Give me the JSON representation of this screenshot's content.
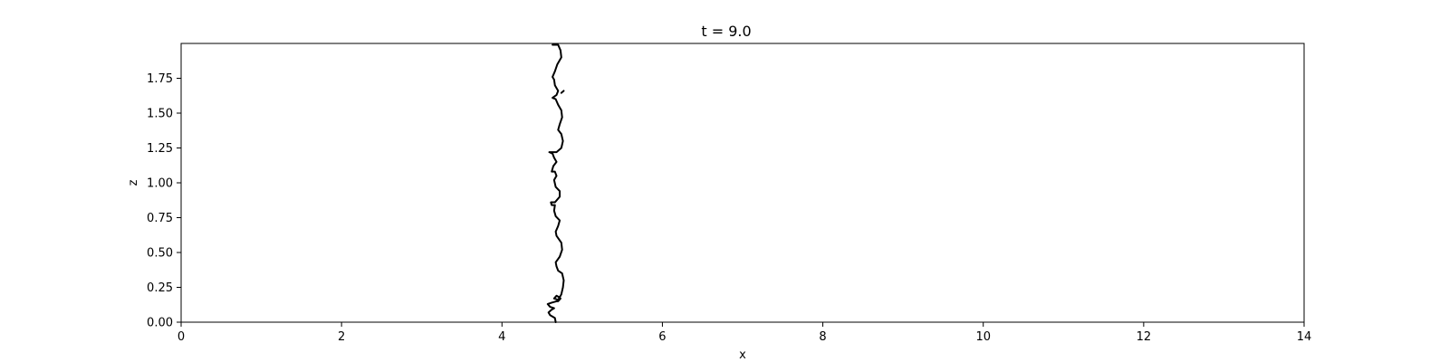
{
  "chart_data": {
    "type": "line",
    "title": "t = 9.0",
    "xlabel": "x",
    "ylabel": "z",
    "xlim": [
      0,
      14
    ],
    "ylim": [
      0,
      2.0
    ],
    "x_ticks": [
      0,
      2,
      4,
      6,
      8,
      10,
      12,
      14
    ],
    "x_tick_labels": [
      "0",
      "2",
      "4",
      "6",
      "8",
      "10",
      "12",
      "14"
    ],
    "y_ticks": [
      0.0,
      0.25,
      0.5,
      0.75,
      1.0,
      1.25,
      1.5,
      1.75
    ],
    "y_tick_labels": [
      "0.00",
      "0.25",
      "0.50",
      "0.75",
      "1.00",
      "1.25",
      "1.50",
      "1.75"
    ],
    "grid": false,
    "line_color": "#000000",
    "series": [
      {
        "points": [
          [
            4.67,
            0.0
          ],
          [
            4.66,
            0.03
          ],
          [
            4.6,
            0.05
          ],
          [
            4.58,
            0.07
          ],
          [
            4.62,
            0.09
          ],
          [
            4.65,
            0.1
          ],
          [
            4.6,
            0.11
          ],
          [
            4.57,
            0.13
          ],
          [
            4.62,
            0.14
          ],
          [
            4.68,
            0.15
          ],
          [
            4.7,
            0.15
          ],
          [
            4.73,
            0.17
          ],
          [
            4.71,
            0.18
          ],
          [
            4.68,
            0.19
          ],
          [
            4.65,
            0.17
          ],
          [
            4.7,
            0.16
          ],
          [
            4.74,
            0.2
          ],
          [
            4.76,
            0.25
          ],
          [
            4.77,
            0.3
          ],
          [
            4.75,
            0.35
          ],
          [
            4.7,
            0.37
          ],
          [
            4.68,
            0.4
          ],
          [
            4.67,
            0.43
          ],
          [
            4.72,
            0.47
          ],
          [
            4.75,
            0.52
          ],
          [
            4.74,
            0.57
          ],
          [
            4.68,
            0.62
          ],
          [
            4.67,
            0.65
          ],
          [
            4.7,
            0.69
          ],
          [
            4.72,
            0.73
          ],
          [
            4.67,
            0.76
          ],
          [
            4.65,
            0.8
          ],
          [
            4.66,
            0.84
          ],
          [
            4.62,
            0.84
          ],
          [
            4.61,
            0.86
          ],
          [
            4.66,
            0.86
          ],
          [
            4.72,
            0.9
          ],
          [
            4.72,
            0.94
          ],
          [
            4.67,
            0.97
          ],
          [
            4.65,
            1.02
          ],
          [
            4.68,
            1.05
          ],
          [
            4.66,
            1.08
          ],
          [
            4.62,
            1.08
          ],
          [
            4.64,
            1.12
          ],
          [
            4.68,
            1.15
          ],
          [
            4.65,
            1.18
          ],
          [
            4.63,
            1.21
          ],
          [
            4.59,
            1.22
          ],
          [
            4.68,
            1.22
          ],
          [
            4.74,
            1.25
          ],
          [
            4.76,
            1.3
          ],
          [
            4.74,
            1.35
          ],
          [
            4.7,
            1.38
          ],
          [
            4.72,
            1.42
          ],
          [
            4.75,
            1.47
          ],
          [
            4.74,
            1.52
          ],
          [
            4.7,
            1.56
          ],
          [
            4.67,
            1.6
          ],
          [
            4.63,
            1.61
          ],
          [
            4.68,
            1.63
          ],
          [
            4.7,
            1.66
          ],
          [
            4.66,
            1.7
          ],
          [
            4.65,
            1.74
          ],
          [
            4.63,
            1.76
          ],
          [
            4.66,
            1.8
          ],
          [
            4.69,
            1.85
          ],
          [
            4.74,
            1.9
          ],
          [
            4.73,
            1.95
          ],
          [
            4.7,
            1.99
          ],
          [
            4.63,
            1.99
          ]
        ]
      },
      {
        "points": [
          [
            4.74,
            1.645
          ],
          [
            4.77,
            1.66
          ]
        ]
      }
    ]
  }
}
